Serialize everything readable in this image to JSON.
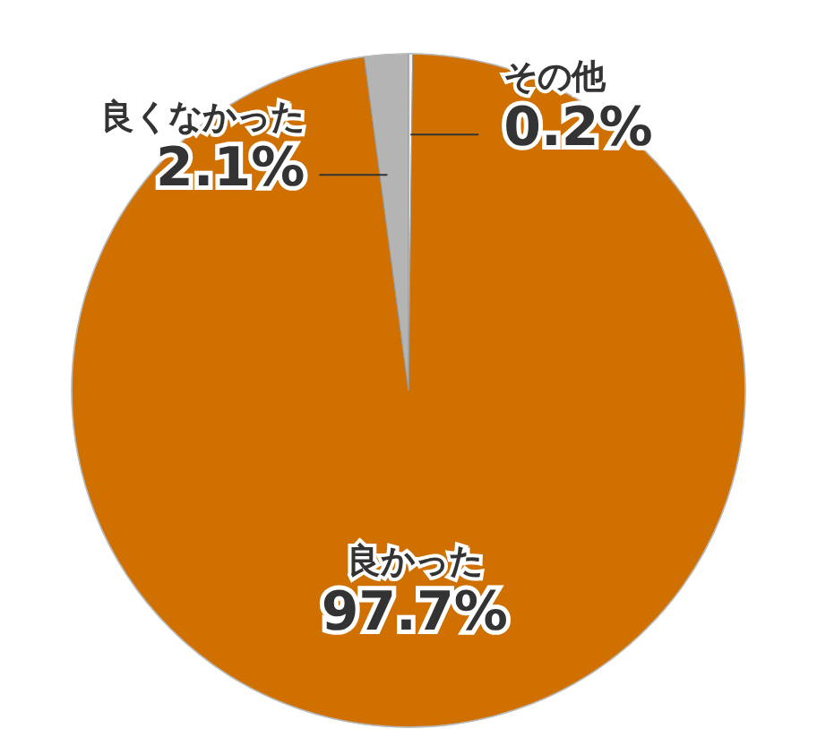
{
  "chart_data": {
    "type": "pie",
    "categories": [
      "その他",
      "良かった",
      "良くなかった"
    ],
    "values": [
      0.2,
      97.7,
      2.1
    ],
    "value_labels": [
      "0.2%",
      "97.7%",
      "2.1%"
    ],
    "colors": [
      "#f2f2f2",
      "#d07000",
      "#b4b4b4"
    ],
    "data_labels": true
  }
}
